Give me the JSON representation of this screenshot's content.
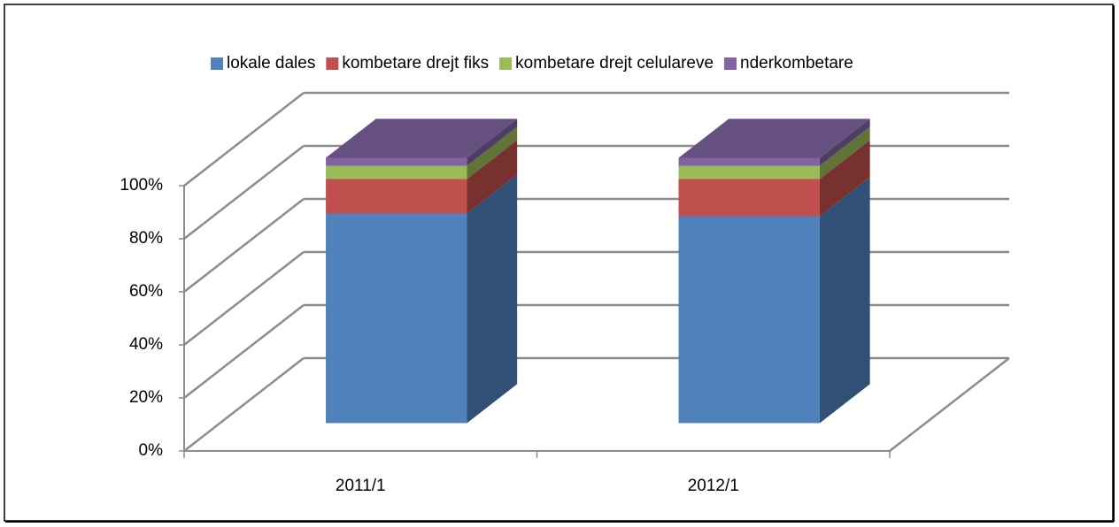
{
  "chart_data": {
    "type": "bar3d_stacked",
    "categories": [
      "2011/1",
      "2012/1"
    ],
    "series": [
      {
        "name": "lokale dales",
        "color": "#4f81bd",
        "values": [
          79,
          78
        ]
      },
      {
        "name": "kombetare drejt fiks",
        "color": "#c0504d",
        "values": [
          13,
          14
        ]
      },
      {
        "name": "kombetare drejt celulareve",
        "color": "#9bbb59",
        "values": [
          5,
          5
        ]
      },
      {
        "name": "nderkombetare",
        "color": "#8064a2",
        "values": [
          3,
          3
        ]
      }
    ],
    "ylim": [
      0,
      100
    ],
    "yticks": [
      {
        "value": 0,
        "label": "0%"
      },
      {
        "value": 20,
        "label": "20%"
      },
      {
        "value": 40,
        "label": "40%"
      },
      {
        "value": 60,
        "label": "60%"
      },
      {
        "value": 80,
        "label": "80%"
      },
      {
        "value": 100,
        "label": "100%"
      }
    ],
    "grid": true,
    "legend": "top"
  }
}
